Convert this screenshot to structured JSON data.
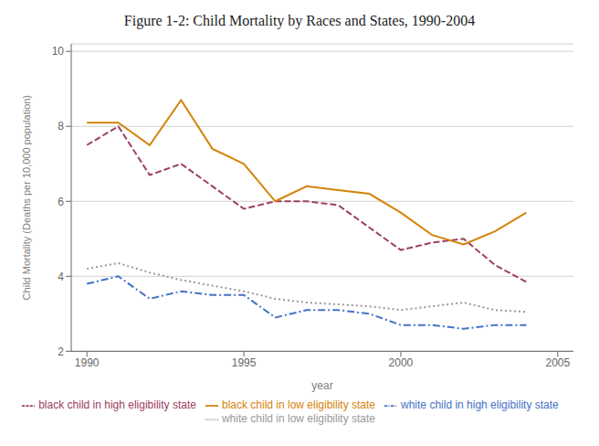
{
  "chart_data": {
    "type": "line",
    "title": "Figure 1-2:  Child Mortality by Races and States, 1990-2004",
    "x_label": "year",
    "y_label": "Child Mortality (Deaths per 10,000 population)",
    "x": [
      1990,
      1991,
      1992,
      1993,
      1994,
      1995,
      1996,
      1997,
      1998,
      1999,
      2000,
      2001,
      2002,
      2003,
      2004
    ],
    "xlim": [
      1989.5,
      2005.5
    ],
    "xticks": [
      1990,
      1995,
      2000,
      2005
    ],
    "ylim": [
      2,
      10.2
    ],
    "yticks": [
      2,
      4,
      6,
      8,
      10
    ],
    "grid": true,
    "legend": "bottom",
    "series": [
      {
        "name": "white child in high eligibility state",
        "color": "#4472c4",
        "line_style": "dashdot",
        "values": [
          3.8,
          4.0,
          3.4,
          3.6,
          3.5,
          3.5,
          2.9,
          3.1,
          3.1,
          3.0,
          2.7,
          2.7,
          2.6,
          2.7,
          2.7
        ]
      },
      {
        "name": "black child in high eligibility state",
        "color": "#9b4060",
        "line_style": "dashed",
        "values": [
          7.5,
          8.0,
          6.7,
          7.0,
          6.4,
          5.8,
          6.0,
          6.0,
          5.9,
          5.3,
          4.7,
          4.9,
          5.0,
          4.3,
          3.85
        ]
      },
      {
        "name": "white child in low eligibility state",
        "color": "#999999",
        "line_style": "dotted",
        "values": [
          4.2,
          4.35,
          4.1,
          3.9,
          3.75,
          3.6,
          3.4,
          3.3,
          3.25,
          3.2,
          3.1,
          3.2,
          3.3,
          3.1,
          3.05
        ]
      },
      {
        "name": "black child in low eligibility state",
        "color": "#d4830a",
        "line_style": "solid",
        "values": [
          8.1,
          8.1,
          7.5,
          8.7,
          7.4,
          7.0,
          6.0,
          6.4,
          6.3,
          6.2,
          5.7,
          5.1,
          4.85,
          5.2,
          5.7
        ]
      }
    ]
  }
}
